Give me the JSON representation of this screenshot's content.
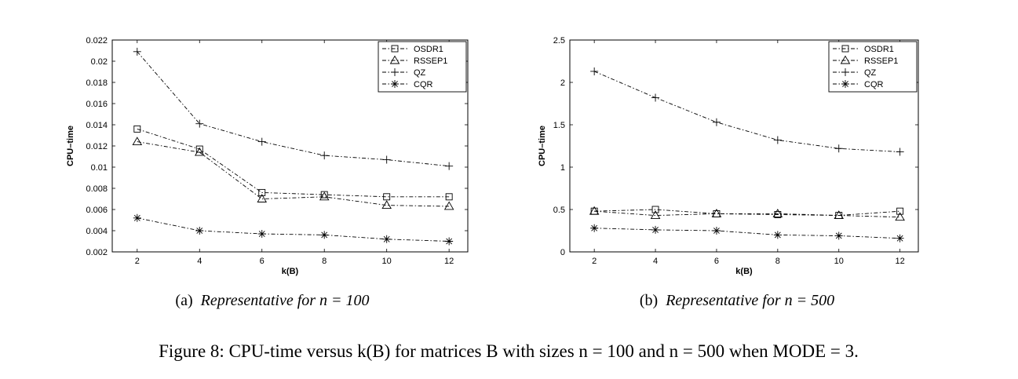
{
  "chart_data": [
    {
      "type": "line",
      "title": "",
      "xlabel": "k(B)",
      "ylabel": "CPU–time",
      "x": [
        2,
        4,
        6,
        8,
        10,
        12
      ],
      "xlim": [
        1.2,
        12.6
      ],
      "xticks": [
        2,
        4,
        6,
        8,
        10,
        12
      ],
      "ylim": [
        0.002,
        0.022
      ],
      "yticks": [
        "0.002",
        "0.004",
        "0.006",
        "0.008",
        "0.01",
        "0.012",
        "0.014",
        "0.016",
        "0.018",
        "0.02",
        "0.022"
      ],
      "grid": false,
      "legend_position": "top-right",
      "series": [
        {
          "name": "OSDR1",
          "marker": "square",
          "values": [
            0.0136,
            0.0117,
            0.0076,
            0.0074,
            0.0072,
            0.0072
          ]
        },
        {
          "name": "RSSEP1",
          "marker": "triangle",
          "values": [
            0.0124,
            0.0114,
            0.007,
            0.0072,
            0.0064,
            0.0063
          ]
        },
        {
          "name": "QZ",
          "marker": "plus",
          "values": [
            0.0209,
            0.0141,
            0.0124,
            0.0111,
            0.0107,
            0.0101
          ]
        },
        {
          "name": "CQR",
          "marker": "asterisk",
          "values": [
            0.0052,
            0.004,
            0.0037,
            0.0036,
            0.0032,
            0.003
          ]
        }
      ],
      "caption_prefix": "(a)",
      "caption_text": "Representative for n = 100"
    },
    {
      "type": "line",
      "title": "",
      "xlabel": "k(B)",
      "ylabel": "CPU–time",
      "x": [
        2,
        4,
        6,
        8,
        10,
        12
      ],
      "xlim": [
        1.2,
        12.6
      ],
      "xticks": [
        2,
        4,
        6,
        8,
        10,
        12
      ],
      "ylim": [
        0,
        2.5
      ],
      "yticks": [
        "0",
        "0.5",
        "1",
        "1.5",
        "2",
        "2.5"
      ],
      "grid": false,
      "legend_position": "top-right",
      "series": [
        {
          "name": "OSDR1",
          "marker": "square",
          "values": [
            0.48,
            0.5,
            0.45,
            0.44,
            0.43,
            0.48
          ]
        },
        {
          "name": "RSSEP1",
          "marker": "triangle",
          "values": [
            0.48,
            0.43,
            0.45,
            0.45,
            0.43,
            0.41
          ]
        },
        {
          "name": "QZ",
          "marker": "plus",
          "values": [
            2.13,
            1.82,
            1.53,
            1.32,
            1.22,
            1.18
          ]
        },
        {
          "name": "CQR",
          "marker": "asterisk",
          "values": [
            0.28,
            0.26,
            0.25,
            0.2,
            0.19,
            0.16
          ]
        }
      ],
      "caption_prefix": "(b)",
      "caption_text": "Representative for n = 500"
    }
  ],
  "figure_caption": "Figure 8: CPU-time versus k(B) for matrices B with sizes n = 100 and n = 500 when MODE = 3."
}
